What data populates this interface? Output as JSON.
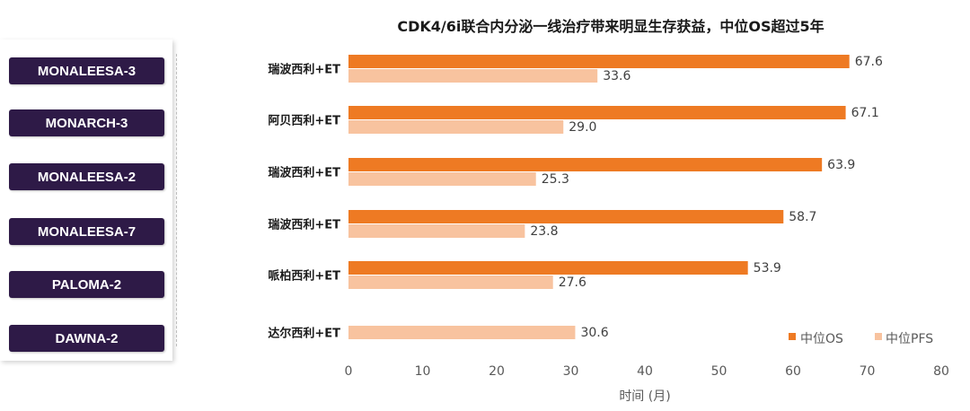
{
  "trials": [
    "MONALEESA-3",
    "MONARCH-3",
    "MONALEESA-2",
    "MONALEESA-7",
    "PALOMA-2",
    "DAWNA-2"
  ],
  "colors": {
    "os": "#ee7a23",
    "pfs": "#f8c39f",
    "badge": "#2e1a47"
  },
  "chart_data": {
    "type": "bar",
    "orientation": "horizontal",
    "title": "CDK4/6i联合内分泌一线治疗带来明显生存获益，中位OS超过5年",
    "categories": [
      "瑞波西利+ET",
      "阿贝西利+ET",
      "瑞波西利+ET",
      "瑞波西利+ET",
      "哌柏西利+ET",
      "达尔西利+ET"
    ],
    "series": [
      {
        "name": "中位OS",
        "values": [
          67.6,
          67.1,
          63.9,
          58.7,
          53.9,
          null
        ],
        "labels": [
          "67.6",
          "67.1",
          "63.9",
          "58.7",
          "53.9",
          null
        ]
      },
      {
        "name": "中位PFS",
        "values": [
          33.6,
          29.0,
          25.3,
          23.8,
          27.6,
          30.6
        ],
        "labels": [
          "33.6",
          "29.0",
          "25.3",
          "23.8",
          "27.6",
          "30.6"
        ]
      }
    ],
    "xlabel": "时间 (月)",
    "xlim": [
      0,
      80
    ],
    "xticks": [
      "0",
      "10",
      "20",
      "30",
      "40",
      "50",
      "60",
      "70",
      "80"
    ],
    "grid": false,
    "legend_position": "bottom-right"
  }
}
